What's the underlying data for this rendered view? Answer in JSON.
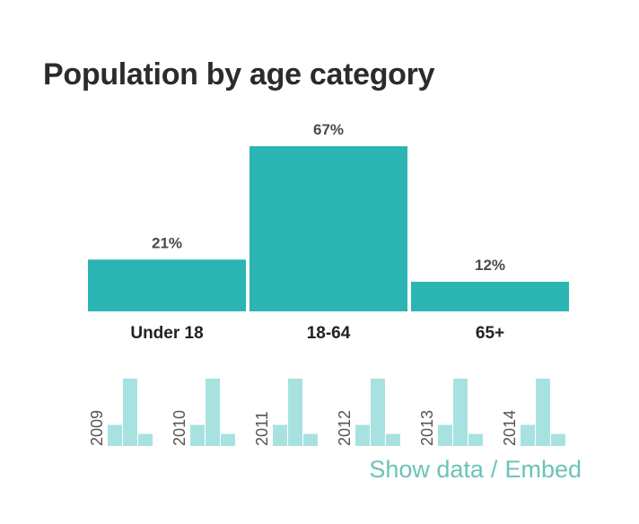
{
  "title": "Population by age category",
  "chart_data": {
    "type": "bar",
    "title": "Population by age category",
    "categories": [
      "Under 18",
      "18-64",
      "65+"
    ],
    "values": [
      21,
      67,
      12
    ],
    "labels": [
      "21%",
      "67%",
      "12%"
    ],
    "unit": "%",
    "ylim": [
      0,
      67
    ],
    "grid": false,
    "colors": {
      "bar": "#2bb5b3",
      "mini_bar": "#a8e2e0"
    }
  },
  "history": [
    {
      "year": "2009",
      "values": [
        21,
        67,
        12
      ]
    },
    {
      "year": "2010",
      "values": [
        21,
        67,
        12
      ]
    },
    {
      "year": "2011",
      "values": [
        21,
        67,
        12
      ]
    },
    {
      "year": "2012",
      "values": [
        21,
        67,
        12
      ]
    },
    {
      "year": "2013",
      "values": [
        21,
        67,
        12
      ]
    },
    {
      "year": "2014",
      "values": [
        21,
        67,
        12
      ]
    }
  ],
  "links": {
    "show_data": "Show data",
    "separator": "/",
    "embed": "Embed"
  }
}
